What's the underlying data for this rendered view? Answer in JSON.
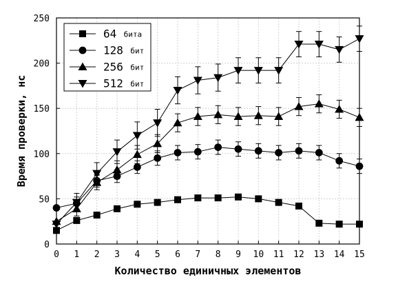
{
  "chart_data": {
    "type": "line",
    "title": "",
    "xlabel": "Количество единичных элементов",
    "ylabel": "Время проверки, нс",
    "xlim": [
      0,
      15
    ],
    "ylim": [
      0,
      250
    ],
    "x_ticks": [
      0,
      1,
      2,
      3,
      4,
      5,
      6,
      7,
      8,
      9,
      10,
      11,
      12,
      13,
      14,
      15
    ],
    "y_ticks": [
      0,
      50,
      100,
      150,
      200,
      250
    ],
    "grid": true,
    "legend_position": "top-left",
    "x": [
      0,
      1,
      2,
      3,
      4,
      5,
      6,
      7,
      8,
      9,
      10,
      11,
      12,
      13,
      14,
      15
    ],
    "series": [
      {
        "number": "64",
        "unit": "бита",
        "marker": "square",
        "values": [
          15,
          26,
          32,
          39,
          44,
          46,
          49,
          51,
          51,
          52,
          50,
          46,
          42,
          23,
          22,
          22
        ],
        "errors": [
          0,
          0,
          0,
          0,
          0,
          0,
          0,
          0,
          0,
          0,
          0,
          0,
          0,
          0,
          0,
          0
        ]
      },
      {
        "number": "128",
        "unit": "бит",
        "marker": "circle",
        "values": [
          40,
          45,
          70,
          75,
          85,
          95,
          101,
          102,
          107,
          105,
          103,
          101,
          103,
          101,
          92,
          86
        ],
        "errors": [
          0,
          7,
          7,
          7,
          7,
          8,
          8,
          8,
          8,
          8,
          8,
          8,
          8,
          8,
          8,
          8
        ]
      },
      {
        "number": "256",
        "unit": "бит",
        "marker": "triangle-up",
        "values": [
          25,
          39,
          68,
          82,
          99,
          111,
          134,
          141,
          143,
          141,
          142,
          141,
          152,
          155,
          149,
          140
        ],
        "errors": [
          0,
          8,
          8,
          10,
          10,
          10,
          10,
          10,
          10,
          10,
          10,
          10,
          10,
          10,
          10,
          10
        ]
      },
      {
        "number": "512",
        "unit": "бит",
        "marker": "triangle-down",
        "values": [
          22,
          46,
          78,
          102,
          120,
          134,
          170,
          181,
          184,
          192,
          192,
          192,
          221,
          221,
          215,
          227
        ],
        "errors": [
          0,
          10,
          12,
          13,
          15,
          15,
          15,
          15,
          15,
          14,
          14,
          14,
          14,
          14,
          14,
          14
        ]
      }
    ]
  }
}
